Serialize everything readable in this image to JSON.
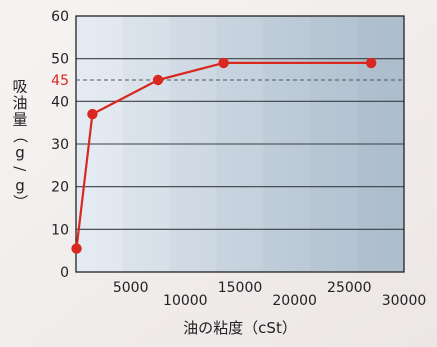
{
  "chart_data": {
    "type": "line",
    "xlabel": "油の粘度（cSt）",
    "ylabel": "吸油量（g/g）",
    "xlim": [
      0,
      30000
    ],
    "ylim": [
      0,
      60
    ],
    "xticks": [
      5000,
      10000,
      15000,
      20000,
      25000,
      30000
    ],
    "yticks": [
      0,
      10,
      20,
      30,
      40,
      50,
      60
    ],
    "x": [
      50,
      1500,
      7500,
      13500,
      27000
    ],
    "y": [
      5.5,
      37,
      45,
      49,
      49
    ],
    "reference_line": {
      "value": 45,
      "label": "45",
      "style": "dashed",
      "color": "#d8281f"
    },
    "line_color": "#d8281f",
    "grid": true
  }
}
